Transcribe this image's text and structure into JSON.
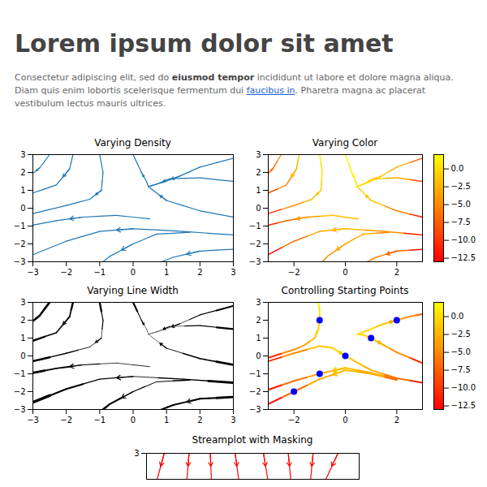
{
  "title": "Lorem ipsum dolor sit amet",
  "paragraph": [
    {
      "text": "Consectetur adipiscing elit, sed do "
    },
    {
      "text": "eiusmod tempor",
      "style": "bold"
    },
    {
      "text": " incididunt ut labore et dolore magna aliqua. Diam quis enim lobortis scelerisque fermentum dui "
    },
    {
      "text": "faucibus in",
      "style": "link"
    },
    {
      "text": ". Pharetra magna ac placerat vestibulum lectus mauris ultrices."
    }
  ],
  "chart_data": [
    {
      "type": "streamplot",
      "title": "Varying Density",
      "color": "#1f77b4",
      "xlim": [
        -3,
        3
      ],
      "ylim": [
        -3,
        3
      ],
      "xticks": [
        {
          "value": -3,
          "label": "−3"
        },
        {
          "value": -2,
          "label": "−2"
        },
        {
          "value": -1,
          "label": "−1"
        },
        0,
        1,
        2,
        3
      ],
      "yticks": [
        {
          "value": -3,
          "label": "−3"
        },
        {
          "value": -2,
          "label": "−2"
        },
        {
          "value": -1,
          "label": "−1"
        },
        0,
        1,
        2,
        3
      ],
      "streamlines": [
        {
          "x": [
            3,
            1.5,
            0,
            -1,
            -2,
            -3
          ],
          "y": [
            -1.5,
            -1.3,
            -1.15,
            -1.3,
            -1.85,
            -2.6
          ]
        },
        {
          "x": [
            3,
            2,
            1,
            0.6,
            0.46
          ],
          "y": [
            -0.5,
            -0.15,
            0.43,
            1.0,
            1.21
          ]
        },
        {
          "x": [
            3,
            2,
            1.1,
            0.7,
            0.46
          ],
          "y": [
            1.5,
            1.7,
            1.65,
            1.35,
            1.21
          ]
        },
        {
          "x": [
            3,
            2,
            1.4,
            0.9,
            0.46
          ],
          "y": [
            2.8,
            2.3,
            1.8,
            1.45,
            1.21
          ]
        },
        {
          "x": [
            0,
            0.25,
            0.4,
            0.46
          ],
          "y": [
            3,
            2,
            1.5,
            1.21
          ]
        },
        {
          "x": [
            -1,
            -0.9,
            -0.95,
            -1.3,
            -2,
            -3
          ],
          "y": [
            3,
            2,
            1,
            0.5,
            0.15,
            -0.3
          ]
        },
        {
          "x": [
            -2.5,
            -2.8,
            -3
          ],
          "y": [
            3,
            2.25,
            1.95
          ]
        },
        {
          "x": [
            -1.8,
            -1.9,
            -2.3,
            -3
          ],
          "y": [
            3,
            2.2,
            1.3,
            0.85
          ]
        },
        {
          "x": [
            3,
            2,
            1.2,
            0.85
          ],
          "y": [
            -2.3,
            -2.4,
            -2.75,
            -3
          ]
        },
        {
          "x": [
            1.7,
            0.7,
            0,
            -0.7,
            -0.9
          ],
          "y": [
            -1.35,
            -1.45,
            -2,
            -2.7,
            -3
          ]
        },
        {
          "x": [
            0.5,
            -0.5,
            -1.5,
            -2.3,
            -3
          ],
          "y": [
            -0.6,
            -0.4,
            -0.5,
            -0.7,
            -0.95
          ]
        }
      ]
    },
    {
      "type": "streamplot",
      "title": "Varying Color",
      "xlim": [
        -3,
        3
      ],
      "ylim": [
        -3,
        3
      ],
      "xticks": [
        {
          "value": -2,
          "label": "−2"
        },
        0,
        2
      ],
      "yticks": [
        {
          "value": -3,
          "label": "−3"
        },
        {
          "value": -2,
          "label": "−2"
        },
        {
          "value": -1,
          "label": "−1"
        },
        0,
        1,
        2,
        3
      ],
      "streamlines": [
        {
          "x": [
            3,
            1.5,
            0,
            -1,
            -2,
            -3
          ],
          "y": [
            -1.5,
            -1.3,
            -1.15,
            -1.3,
            -1.85,
            -2.6
          ],
          "values": [
            -11.5,
            -4.55,
            -2.15,
            -3.3,
            -6.85,
            -12.6
          ]
        },
        {
          "x": [
            3,
            2,
            1,
            0.6,
            0.46
          ],
          "y": [
            -0.5,
            -0.15,
            0.43,
            1.0,
            1.21
          ],
          "values": [
            -10.5,
            -5.15,
            -1.57,
            -0.36,
            0
          ]
        },
        {
          "x": [
            3,
            2,
            1.1,
            0.7,
            0.46
          ],
          "y": [
            1.5,
            1.7,
            1.65,
            1.35,
            1.21
          ],
          "values": [
            -8.5,
            -3.3,
            -0.56,
            -0.14,
            0
          ]
        },
        {
          "x": [
            3,
            2,
            1.4,
            0.9,
            0.46
          ],
          "y": [
            2.8,
            2.3,
            1.8,
            1.45,
            1.21
          ],
          "values": [
            -7.2,
            -2.7,
            -1.16,
            -0.36,
            0
          ]
        },
        {
          "x": [
            0,
            0.25,
            0.4,
            0.46
          ],
          "y": [
            3,
            2,
            1.5,
            1.21
          ],
          "values": [
            2,
            0.94,
            0.34,
            0
          ]
        },
        {
          "x": [
            -1,
            -0.9,
            -0.95,
            -1.3,
            -2,
            -3
          ],
          "y": [
            3,
            2,
            1,
            0.5,
            0.15,
            -0.3
          ],
          "values": [
            1,
            0.19,
            -0.9,
            -2.19,
            -4.85,
            -10.3
          ]
        },
        {
          "x": [
            -2.5,
            -2.8,
            -3
          ],
          "y": [
            3,
            2.25,
            1.95
          ],
          "values": [
            -4.25,
            -6.59,
            -8.05
          ]
        },
        {
          "x": [
            -1.8,
            -1.9,
            -2.3,
            -3
          ],
          "y": [
            3,
            2.2,
            1.3,
            0.85
          ],
          "values": [
            -1.24,
            -2.41,
            -5,
            -9.15
          ]
        },
        {
          "x": [
            3,
            2,
            1.2,
            0.85
          ],
          "y": [
            -2.3,
            -2.4,
            -2.75,
            -3
          ],
          "values": [
            -12.3,
            -7.4,
            -5.19,
            -4.72
          ]
        },
        {
          "x": [
            1.7,
            0.7,
            0,
            -0.7,
            -0.9
          ],
          "y": [
            -1.35,
            -1.45,
            -2,
            -2.7,
            -3
          ],
          "values": [
            -5.24,
            -2.94,
            -3,
            -4.19,
            -4.81
          ]
        },
        {
          "x": [
            0.5,
            -0.5,
            -1.5,
            -2.3,
            -3
          ],
          "y": [
            -0.6,
            -0.4,
            -0.5,
            -0.7,
            -0.95
          ],
          "values": [
            -1.85,
            -1.65,
            -3.75,
            -6.99,
            -10.95
          ]
        }
      ],
      "colorbar": {
        "lim": [
          -13,
          2
        ],
        "ticks": [
          {
            "value": 0,
            "label": "0.0"
          },
          {
            "value": -2.5,
            "label": "−2.5"
          },
          {
            "value": -5,
            "label": "−5.0"
          },
          {
            "value": -7.5,
            "label": "−7.5"
          },
          {
            "value": -10,
            "label": "−10.0"
          },
          {
            "value": -12.5,
            "label": "−12.5"
          }
        ]
      }
    },
    {
      "type": "streamplot",
      "title": "Varying Line Width",
      "color": "#000000",
      "xlim": [
        -3,
        3
      ],
      "ylim": [
        -3,
        3
      ],
      "xticks": [
        {
          "value": -3,
          "label": "−3"
        },
        {
          "value": -2,
          "label": "−2"
        },
        {
          "value": -1,
          "label": "−1"
        },
        0,
        1,
        2,
        3
      ],
      "yticks": [
        {
          "value": -3,
          "label": "−3"
        },
        {
          "value": -2,
          "label": "−2"
        },
        {
          "value": -1,
          "label": "−1"
        },
        0,
        1,
        2,
        3
      ],
      "streamlines": [
        {
          "x": [
            3,
            1.5,
            0,
            -1,
            -2,
            -3
          ],
          "y": [
            -1.5,
            -1.3,
            -1.15,
            -1.3,
            -1.85,
            -2.6
          ],
          "speed": [
            11.63,
            4.62,
            2.17,
            3.71,
            8.15,
            15.35
          ]
        },
        {
          "x": [
            3,
            2,
            1,
            0.6,
            0.46
          ],
          "y": [
            -0.5,
            -0.15,
            0.43,
            1.0,
            1.21
          ],
          "speed": [
            11.15,
            5.95,
            2.4,
            0.7,
            0
          ]
        },
        {
          "x": [
            3,
            2,
            1.1,
            0.7,
            0.46
          ],
          "y": [
            1.5,
            1.7,
            1.65,
            1.35,
            1.21
          ],
          "speed": [
            8.68,
            3.3,
            0.84,
            0.18,
            0
          ]
        },
        {
          "x": [
            3,
            2,
            1.4,
            0.9,
            0.46
          ],
          "y": [
            2.8,
            2.3,
            1.8,
            1.45,
            1.21
          ],
          "speed": [
            8.16,
            3.54,
            1.43,
            0.41,
            0
          ]
        },
        {
          "x": [
            0,
            0.25,
            0.4,
            0.46
          ],
          "y": [
            3,
            2,
            1.5,
            1.21
          ],
          "speed": [
            8.25,
            2.91,
            0.92,
            0
          ]
        },
        {
          "x": [
            -1,
            -0.9,
            -0.95,
            -1.3,
            -2,
            -3
          ],
          "y": [
            3,
            2,
            1,
            0.5,
            0.15,
            -0.3
          ],
          "speed": [
            9.06,
            3.9,
            1.31,
            2.26,
            4.96,
            10.51
          ]
        },
        {
          "x": [
            -2.5,
            -2.8,
            -3
          ],
          "y": [
            3,
            2.25,
            1.95
          ],
          "speed": [
            11.33,
            9.51,
            9.92
          ]
        },
        {
          "x": [
            -1.8,
            -1.9,
            -2.3,
            -3
          ],
          "y": [
            3,
            2.2,
            1.3,
            0.85
          ],
          "speed": [
            9.88,
            6.23,
            5.83,
            9.55
          ]
        },
        {
          "x": [
            3,
            2,
            1.2,
            0.85
          ],
          "y": [
            -2.3,
            -2.4,
            -2.75,
            -3
          ],
          "speed": [
            12.37,
            7.9,
            7.46,
            8.57
          ]
        },
        {
          "x": [
            1.7,
            0.7,
            0,
            -0.7,
            -0.9
          ],
          "y": [
            -1.35,
            -1.45,
            -2,
            -2.7,
            -3
          ],
          "speed": [
            5.31,
            2.97,
            4.24,
            8.15,
            10.12
          ]
        },
        {
          "x": [
            0.5,
            -0.5,
            -1.5,
            -2.3,
            -3
          ],
          "y": [
            -0.6,
            -0.4,
            -0.5,
            -0.7,
            -0.95
          ],
          "speed": [
            2.17,
            1.68,
            3.82,
            7.22,
            11.33
          ]
        }
      ]
    },
    {
      "type": "streamplot",
      "title": "Controlling Starting Points",
      "xlim": [
        -3,
        3
      ],
      "ylim": [
        -3,
        3
      ],
      "xticks": [
        {
          "value": -2,
          "label": "−2"
        },
        0,
        2
      ],
      "yticks": [
        {
          "value": -3,
          "label": "−3"
        },
        {
          "value": -2,
          "label": "−2"
        },
        {
          "value": -1,
          "label": "−1"
        },
        0,
        1,
        2,
        3
      ],
      "streamlines": [
        {
          "x": [
            2,
            1,
            0,
            -1,
            -2,
            -3
          ],
          "y": [
            -1.35,
            -1,
            -0.8,
            -1.3,
            -2,
            -2.7
          ],
          "values": [
            -6.35,
            -3,
            -1.8,
            -3.3,
            -7,
            -12.7
          ]
        },
        {
          "x": [
            2,
            1,
            0,
            -1,
            -2,
            -3
          ],
          "y": [
            -1.3,
            -0.95,
            -0.67,
            -1,
            -1.4,
            -1.9
          ],
          "values": [
            -6.3,
            -2.95,
            -1.67,
            -3,
            -6.4,
            -11.9
          ]
        },
        {
          "x": [
            3,
            2,
            1,
            0.5,
            0,
            -0.5,
            -1,
            -2,
            -3
          ],
          "y": [
            -1.5,
            -1.25,
            -0.8,
            -0.4,
            0,
            0.45,
            0.55,
            0.15,
            -0.3
          ],
          "values": [
            -11.5,
            -6.25,
            -2.8,
            -1.65,
            -1,
            -0.8,
            -1.45,
            -4.85,
            -10.3
          ]
        },
        {
          "x": [
            3,
            2,
            1.5,
            1,
            0.7,
            0.46
          ],
          "y": [
            -0.4,
            0.2,
            0.6,
            1,
            1.18,
            1.21
          ],
          "values": [
            -10.4,
            -4.8,
            -2.65,
            -1,
            -0.31,
            0
          ]
        },
        {
          "x": [
            3,
            2.5,
            2,
            1.4,
            0.9,
            0.46
          ],
          "y": [
            2.35,
            2.2,
            2,
            1.75,
            1.45,
            1.21
          ],
          "values": [
            -7.65,
            -5.05,
            -3,
            -1.21,
            -0.36,
            0
          ]
        },
        {
          "x": [
            -1.05,
            -1,
            -1,
            -1.05,
            -1.2,
            -1.6,
            -2,
            -3
          ],
          "y": [
            3,
            2.5,
            2,
            1.5,
            1,
            0.6,
            0.35,
            -0.1
          ],
          "values": [
            0.9,
            0.5,
            0,
            -0.6,
            -1.44,
            -2.96,
            -4.65,
            -10.1
          ]
        }
      ],
      "seed_points": {
        "x": [
          -2,
          -1,
          0,
          1,
          2,
          -1
        ],
        "y": [
          -2,
          -1,
          0,
          1,
          2,
          2
        ],
        "color": "#0000ff"
      },
      "colorbar": {
        "lim": [
          -13,
          2
        ],
        "ticks": [
          {
            "value": 0,
            "label": "0.0"
          },
          {
            "value": -2.5,
            "label": "−2.5"
          },
          {
            "value": -5,
            "label": "−5.0"
          },
          {
            "value": -7.5,
            "label": "−7.5"
          },
          {
            "value": -10,
            "label": "−10.0"
          },
          {
            "value": -12.5,
            "label": "−12.5"
          }
        ]
      }
    },
    {
      "type": "streamplot",
      "title": "Streamplot with Masking",
      "color": "#ff0000",
      "xlim": [
        -3,
        3
      ],
      "ylim": [
        2.5,
        3
      ],
      "yticks": [
        3
      ],
      "tick_labels": "y",
      "streamlines": [
        {
          "x": [
            -2.5,
            -2.7
          ],
          "y": [
            3,
            2.5
          ]
        },
        {
          "x": [
            -1.8,
            -1.86
          ],
          "y": [
            3,
            2.5
          ]
        },
        {
          "x": [
            -1.2,
            -1.17
          ],
          "y": [
            3,
            2.5
          ]
        },
        {
          "x": [
            -0.5,
            -0.4
          ],
          "y": [
            3,
            2.5
          ]
        },
        {
          "x": [
            0.3,
            0.42
          ],
          "y": [
            3,
            2.5
          ]
        },
        {
          "x": [
            1,
            1.07
          ],
          "y": [
            3,
            2.5
          ]
        },
        {
          "x": [
            1.7,
            1.63
          ],
          "y": [
            3,
            2.5
          ]
        },
        {
          "x": [
            2.4,
            2.06
          ],
          "y": [
            3,
            2.5
          ]
        }
      ]
    }
  ]
}
